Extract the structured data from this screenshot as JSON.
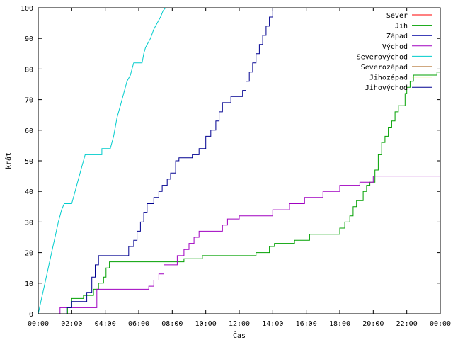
{
  "chart_data": {
    "type": "line",
    "title": "",
    "xlabel": "Čas",
    "ylabel": "krát",
    "xlim": [
      0,
      24
    ],
    "ylim": [
      0,
      100
    ],
    "grid": false,
    "legend_position": "top-right",
    "x_ticks": [
      {
        "x": 0,
        "label": "00:00"
      },
      {
        "x": 2,
        "label": "02:00"
      },
      {
        "x": 4,
        "label": "04:00"
      },
      {
        "x": 6,
        "label": "06:00"
      },
      {
        "x": 8,
        "label": "08:00"
      },
      {
        "x": 10,
        "label": "10:00"
      },
      {
        "x": 12,
        "label": "12:00"
      },
      {
        "x": 14,
        "label": "14:00"
      },
      {
        "x": 16,
        "label": "16:00"
      },
      {
        "x": 18,
        "label": "18:00"
      },
      {
        "x": 20,
        "label": "20:00"
      },
      {
        "x": 22,
        "label": "22:00"
      },
      {
        "x": 24,
        "label": "00:00"
      }
    ],
    "y_ticks": [
      {
        "y": 0,
        "label": "0"
      },
      {
        "y": 10,
        "label": "10"
      },
      {
        "y": 20,
        "label": "20"
      },
      {
        "y": 30,
        "label": "30"
      },
      {
        "y": 40,
        "label": "40"
      },
      {
        "y": 50,
        "label": "50"
      },
      {
        "y": 60,
        "label": "60"
      },
      {
        "y": 70,
        "label": "70"
      },
      {
        "y": 80,
        "label": "80"
      },
      {
        "y": 90,
        "label": "90"
      },
      {
        "y": 100,
        "label": "100"
      }
    ],
    "series": [
      {
        "name": "Sever",
        "color": "#ff0000",
        "points": []
      },
      {
        "name": "Jih",
        "color": "#00a000",
        "points": [
          [
            1.75,
            0
          ],
          [
            1.75,
            2
          ],
          [
            2.0,
            2
          ],
          [
            2.0,
            5
          ],
          [
            2.7,
            5
          ],
          [
            2.7,
            6
          ],
          [
            3.3,
            6
          ],
          [
            3.3,
            8
          ],
          [
            3.6,
            8
          ],
          [
            3.6,
            10
          ],
          [
            3.9,
            10
          ],
          [
            3.9,
            12
          ],
          [
            4.05,
            12
          ],
          [
            4.05,
            15
          ],
          [
            4.25,
            15
          ],
          [
            4.25,
            17
          ],
          [
            8.7,
            17
          ],
          [
            8.7,
            18
          ],
          [
            9.8,
            18
          ],
          [
            9.8,
            19
          ],
          [
            13.0,
            19
          ],
          [
            13.0,
            20
          ],
          [
            13.8,
            20
          ],
          [
            13.8,
            22
          ],
          [
            14.1,
            22
          ],
          [
            14.1,
            23
          ],
          [
            15.3,
            23
          ],
          [
            15.3,
            24
          ],
          [
            16.2,
            24
          ],
          [
            16.2,
            26
          ],
          [
            18.0,
            26
          ],
          [
            18.0,
            28
          ],
          [
            18.3,
            28
          ],
          [
            18.3,
            30
          ],
          [
            18.6,
            30
          ],
          [
            18.6,
            32
          ],
          [
            18.8,
            32
          ],
          [
            18.8,
            35
          ],
          [
            19.0,
            35
          ],
          [
            19.0,
            37
          ],
          [
            19.4,
            37
          ],
          [
            19.4,
            40
          ],
          [
            19.6,
            40
          ],
          [
            19.6,
            42
          ],
          [
            19.8,
            42
          ],
          [
            19.8,
            43
          ],
          [
            20.1,
            43
          ],
          [
            20.1,
            47
          ],
          [
            20.3,
            47
          ],
          [
            20.3,
            52
          ],
          [
            20.5,
            52
          ],
          [
            20.5,
            56
          ],
          [
            20.7,
            56
          ],
          [
            20.7,
            58
          ],
          [
            20.9,
            58
          ],
          [
            20.9,
            61
          ],
          [
            21.1,
            61
          ],
          [
            21.1,
            63
          ],
          [
            21.3,
            63
          ],
          [
            21.3,
            66
          ],
          [
            21.5,
            66
          ],
          [
            21.5,
            68
          ],
          [
            21.9,
            68
          ],
          [
            21.9,
            72
          ],
          [
            22.0,
            72
          ],
          [
            22.0,
            74
          ],
          [
            22.2,
            74
          ],
          [
            22.2,
            76
          ],
          [
            22.4,
            76
          ],
          [
            22.4,
            78
          ],
          [
            23.8,
            78
          ],
          [
            23.8,
            79
          ],
          [
            24.0,
            79
          ]
        ]
      },
      {
        "name": "Západ",
        "color": "#0000a0",
        "points": []
      },
      {
        "name": "Východ",
        "color": "#a000c0",
        "points": [
          [
            1.3,
            0
          ],
          [
            1.3,
            2
          ],
          [
            2.3,
            2
          ],
          [
            2.3,
            2
          ],
          [
            3.5,
            2
          ],
          [
            3.5,
            8
          ],
          [
            6.6,
            8
          ],
          [
            6.6,
            9
          ],
          [
            6.9,
            9
          ],
          [
            6.9,
            11
          ],
          [
            7.2,
            11
          ],
          [
            7.2,
            13
          ],
          [
            7.5,
            13
          ],
          [
            7.5,
            16
          ],
          [
            8.3,
            16
          ],
          [
            8.3,
            19
          ],
          [
            8.7,
            19
          ],
          [
            8.7,
            21
          ],
          [
            9.0,
            21
          ],
          [
            9.0,
            23
          ],
          [
            9.3,
            23
          ],
          [
            9.3,
            25
          ],
          [
            9.6,
            25
          ],
          [
            9.6,
            27
          ],
          [
            11.0,
            27
          ],
          [
            11.0,
            29
          ],
          [
            11.3,
            29
          ],
          [
            11.3,
            31
          ],
          [
            12.0,
            31
          ],
          [
            12.0,
            32
          ],
          [
            14.0,
            32
          ],
          [
            14.0,
            34
          ],
          [
            15.0,
            34
          ],
          [
            15.0,
            36
          ],
          [
            15.9,
            36
          ],
          [
            15.9,
            38
          ],
          [
            17.0,
            38
          ],
          [
            17.0,
            40
          ],
          [
            18.0,
            40
          ],
          [
            18.0,
            42
          ],
          [
            19.2,
            42
          ],
          [
            19.2,
            43
          ],
          [
            20.0,
            43
          ],
          [
            20.0,
            45
          ],
          [
            24.0,
            45
          ]
        ]
      },
      {
        "name": "Severovýchod",
        "color": "#00cccc",
        "points": [
          [
            0,
            0
          ],
          [
            0.2,
            5
          ],
          [
            0.4,
            10
          ],
          [
            0.6,
            15
          ],
          [
            0.8,
            20
          ],
          [
            1.0,
            25
          ],
          [
            1.2,
            30
          ],
          [
            1.4,
            34
          ],
          [
            1.55,
            36
          ],
          [
            2.0,
            36
          ],
          [
            2.3,
            42
          ],
          [
            2.6,
            48
          ],
          [
            2.8,
            52
          ],
          [
            3.8,
            52
          ],
          [
            3.8,
            54
          ],
          [
            4.3,
            54
          ],
          [
            4.5,
            58
          ],
          [
            4.7,
            64
          ],
          [
            4.9,
            68
          ],
          [
            5.1,
            72
          ],
          [
            5.3,
            76
          ],
          [
            5.5,
            78
          ],
          [
            5.6,
            80
          ],
          [
            5.7,
            82
          ],
          [
            6.2,
            82
          ],
          [
            6.3,
            85
          ],
          [
            6.4,
            87
          ],
          [
            6.7,
            90
          ],
          [
            6.9,
            93
          ],
          [
            7.1,
            95
          ],
          [
            7.3,
            97
          ],
          [
            7.45,
            99
          ],
          [
            7.6,
            100
          ]
        ]
      },
      {
        "name": "Severozápad",
        "color": "#a05000",
        "points": []
      },
      {
        "name": "Jihozápad",
        "color": "#e8e000",
        "points": []
      },
      {
        "name": "Jihovýchod",
        "color": "#000090",
        "points": [
          [
            1.7,
            0
          ],
          [
            1.7,
            2
          ],
          [
            2.0,
            2
          ],
          [
            2.0,
            4
          ],
          [
            2.9,
            4
          ],
          [
            2.9,
            7
          ],
          [
            3.2,
            7
          ],
          [
            3.2,
            12
          ],
          [
            3.4,
            12
          ],
          [
            3.4,
            16
          ],
          [
            3.6,
            16
          ],
          [
            3.6,
            19
          ],
          [
            5.4,
            19
          ],
          [
            5.4,
            22
          ],
          [
            5.7,
            22
          ],
          [
            5.7,
            24
          ],
          [
            5.9,
            24
          ],
          [
            5.9,
            27
          ],
          [
            6.1,
            27
          ],
          [
            6.1,
            30
          ],
          [
            6.3,
            30
          ],
          [
            6.3,
            33
          ],
          [
            6.5,
            33
          ],
          [
            6.5,
            36
          ],
          [
            6.9,
            36
          ],
          [
            6.9,
            38
          ],
          [
            7.2,
            38
          ],
          [
            7.2,
            40
          ],
          [
            7.4,
            40
          ],
          [
            7.4,
            42
          ],
          [
            7.7,
            42
          ],
          [
            7.7,
            44
          ],
          [
            7.9,
            44
          ],
          [
            7.9,
            46
          ],
          [
            8.2,
            46
          ],
          [
            8.2,
            50
          ],
          [
            8.4,
            50
          ],
          [
            8.4,
            51
          ],
          [
            9.2,
            51
          ],
          [
            9.2,
            52
          ],
          [
            9.6,
            52
          ],
          [
            9.6,
            54
          ],
          [
            10.0,
            54
          ],
          [
            10.0,
            58
          ],
          [
            10.3,
            58
          ],
          [
            10.3,
            60
          ],
          [
            10.6,
            60
          ],
          [
            10.6,
            63
          ],
          [
            10.8,
            63
          ],
          [
            10.8,
            66
          ],
          [
            11.0,
            66
          ],
          [
            11.0,
            69
          ],
          [
            11.5,
            69
          ],
          [
            11.5,
            71
          ],
          [
            12.2,
            71
          ],
          [
            12.2,
            73
          ],
          [
            12.4,
            73
          ],
          [
            12.4,
            76
          ],
          [
            12.6,
            76
          ],
          [
            12.6,
            79
          ],
          [
            12.8,
            79
          ],
          [
            12.8,
            82
          ],
          [
            13.0,
            82
          ],
          [
            13.0,
            85
          ],
          [
            13.2,
            85
          ],
          [
            13.2,
            88
          ],
          [
            13.4,
            88
          ],
          [
            13.4,
            91
          ],
          [
            13.6,
            91
          ],
          [
            13.6,
            94
          ],
          [
            13.8,
            94
          ],
          [
            13.8,
            97
          ],
          [
            14.0,
            97
          ],
          [
            14.0,
            100
          ]
        ]
      }
    ]
  }
}
